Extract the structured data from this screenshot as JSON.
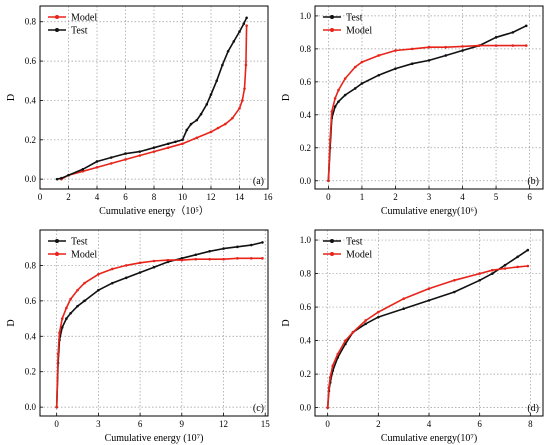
{
  "chart_data": [
    {
      "type": "line",
      "panel_label": "(a)",
      "xlabel": "Cumulative energy（10⁵）",
      "ylabel": "D",
      "xlim": [
        0,
        16
      ],
      "ylim": [
        -0.05,
        0.88
      ],
      "xticks": [
        0,
        2,
        4,
        6,
        8,
        10,
        12,
        14,
        16
      ],
      "yticks": [
        0.0,
        0.2,
        0.4,
        0.6,
        0.8
      ],
      "grid": true,
      "legend_position": "top-left",
      "series": [
        {
          "name": "Model",
          "color": "#e8241a",
          "x": [
            1.5,
            2,
            3,
            4,
            5,
            6,
            7,
            8,
            9,
            10,
            11,
            12,
            12.5,
            13,
            13.5,
            14,
            14.2,
            14.35,
            14.45,
            14.5
          ],
          "y": [
            0.0,
            0.02,
            0.04,
            0.06,
            0.08,
            0.1,
            0.12,
            0.14,
            0.16,
            0.18,
            0.21,
            0.24,
            0.26,
            0.28,
            0.31,
            0.36,
            0.4,
            0.46,
            0.58,
            0.78
          ]
        },
        {
          "name": "Test",
          "color": "#111111",
          "x": [
            1.2,
            1.5,
            2,
            3,
            4,
            5,
            6,
            7,
            8,
            9,
            9.5,
            10,
            10.3,
            10.6,
            11,
            11.3,
            11.7,
            12,
            12.4,
            12.8,
            13.2,
            13.6,
            14,
            14.3,
            14.5
          ],
          "y": [
            0.0,
            0.005,
            0.02,
            0.05,
            0.09,
            0.11,
            0.13,
            0.14,
            0.16,
            0.18,
            0.19,
            0.2,
            0.25,
            0.28,
            0.3,
            0.33,
            0.38,
            0.43,
            0.5,
            0.58,
            0.65,
            0.7,
            0.75,
            0.79,
            0.82
          ]
        }
      ]
    },
    {
      "type": "line",
      "panel_label": "(b)",
      "xlabel": "Cumulative energy(10⁶)",
      "ylabel": "D",
      "xlim": [
        -0.4,
        6.4
      ],
      "ylim": [
        -0.05,
        1.06
      ],
      "xticks": [
        0,
        1,
        2,
        3,
        4,
        5,
        6
      ],
      "yticks": [
        0.0,
        0.2,
        0.4,
        0.6,
        0.8,
        1.0
      ],
      "grid": true,
      "legend_position": "top-left",
      "series": [
        {
          "name": "Test",
          "color": "#111111",
          "x": [
            0,
            0.05,
            0.1,
            0.2,
            0.3,
            0.5,
            0.8,
            1.0,
            1.5,
            2,
            2.5,
            3,
            3.5,
            4,
            4.5,
            5,
            5.5,
            5.9
          ],
          "y": [
            0.0,
            0.2,
            0.38,
            0.45,
            0.48,
            0.52,
            0.56,
            0.59,
            0.64,
            0.68,
            0.71,
            0.73,
            0.76,
            0.79,
            0.82,
            0.87,
            0.9,
            0.94
          ]
        },
        {
          "name": "Model",
          "color": "#e8241a",
          "x": [
            0,
            0.05,
            0.1,
            0.2,
            0.3,
            0.5,
            0.8,
            1.0,
            1.5,
            2,
            2.5,
            3,
            3.5,
            4,
            4.5,
            5,
            5.5,
            5.9
          ],
          "y": [
            0.0,
            0.25,
            0.42,
            0.5,
            0.55,
            0.62,
            0.69,
            0.72,
            0.76,
            0.79,
            0.8,
            0.81,
            0.81,
            0.815,
            0.82,
            0.82,
            0.82,
            0.82
          ]
        }
      ]
    },
    {
      "type": "line",
      "panel_label": "(c)",
      "xlabel": "Cumulative energy (10⁷)",
      "ylabel": "D",
      "xlim": [
        -1.2,
        15.2
      ],
      "ylim": [
        -0.05,
        1.0
      ],
      "xticks": [
        0,
        3,
        6,
        9,
        12,
        15
      ],
      "yticks": [
        0.0,
        0.2,
        0.4,
        0.6,
        0.8
      ],
      "grid": true,
      "legend_position": "top-left",
      "series": [
        {
          "name": "Test",
          "color": "#111111",
          "x": [
            0,
            0.1,
            0.2,
            0.4,
            0.7,
            1,
            1.5,
            2,
            3,
            4,
            5,
            6,
            7,
            8,
            9,
            10,
            11,
            12,
            13,
            14,
            14.8
          ],
          "y": [
            0.0,
            0.25,
            0.38,
            0.45,
            0.5,
            0.53,
            0.57,
            0.6,
            0.66,
            0.7,
            0.73,
            0.76,
            0.79,
            0.82,
            0.84,
            0.86,
            0.88,
            0.895,
            0.905,
            0.915,
            0.93
          ]
        },
        {
          "name": "Model",
          "color": "#e8241a",
          "x": [
            0,
            0.1,
            0.2,
            0.4,
            0.7,
            1,
            1.5,
            2,
            3,
            4,
            5,
            6,
            7,
            8,
            9,
            10,
            11,
            12,
            13,
            14,
            14.8
          ],
          "y": [
            0.0,
            0.3,
            0.42,
            0.5,
            0.56,
            0.61,
            0.66,
            0.7,
            0.75,
            0.78,
            0.8,
            0.815,
            0.825,
            0.83,
            0.83,
            0.835,
            0.835,
            0.835,
            0.84,
            0.84,
            0.84
          ]
        }
      ]
    },
    {
      "type": "line",
      "panel_label": "(d)",
      "xlabel": "Cumulative energy(10⁷)",
      "ylabel": "D",
      "xlim": [
        -0.5,
        8.5
      ],
      "ylim": [
        -0.05,
        1.06
      ],
      "xticks": [
        0,
        2,
        4,
        6,
        8
      ],
      "yticks": [
        0.0,
        0.2,
        0.4,
        0.6,
        0.8,
        1.0
      ],
      "grid": true,
      "legend_position": "top-left",
      "series": [
        {
          "name": "Test",
          "color": "#111111",
          "x": [
            0,
            0.05,
            0.1,
            0.2,
            0.4,
            0.7,
            1,
            1.5,
            2,
            3,
            4,
            5,
            6,
            6.5,
            7,
            7.5,
            7.9
          ],
          "y": [
            0.0,
            0.1,
            0.15,
            0.22,
            0.3,
            0.38,
            0.45,
            0.5,
            0.54,
            0.59,
            0.64,
            0.69,
            0.76,
            0.8,
            0.85,
            0.9,
            0.94
          ]
        },
        {
          "name": "Model",
          "color": "#e8241a",
          "x": [
            0,
            0.05,
            0.1,
            0.2,
            0.4,
            0.7,
            1,
            1.5,
            2,
            3,
            4,
            5,
            6,
            6.5,
            7,
            7.5,
            7.9
          ],
          "y": [
            0.0,
            0.12,
            0.18,
            0.25,
            0.32,
            0.4,
            0.45,
            0.52,
            0.57,
            0.65,
            0.71,
            0.76,
            0.8,
            0.82,
            0.83,
            0.84,
            0.845
          ]
        }
      ]
    }
  ]
}
